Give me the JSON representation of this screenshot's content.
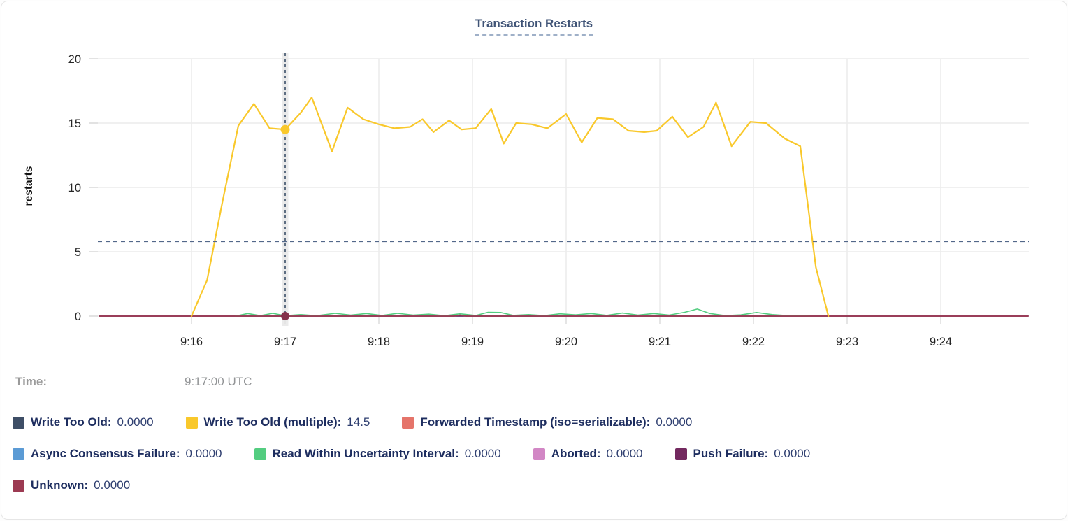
{
  "header": {
    "title": "Transaction Restarts"
  },
  "tooltip": {
    "time_label": "Time:",
    "time_value": "9:17:00 UTC"
  },
  "axis": {
    "ylabel": "restarts"
  },
  "legend_rows": [
    [
      "Write Too Old",
      "Write Too Old (multiple)",
      "Forwarded Timestamp (iso=serializable)"
    ],
    [
      "Async Consensus Failure",
      "Read Within Uncertainty Interval",
      "Aborted",
      "Push Failure"
    ],
    [
      "Unknown"
    ]
  ],
  "chart_data": {
    "type": "line",
    "title": "Transaction Restarts",
    "ylabel": "restarts",
    "ylim": [
      0,
      20
    ],
    "yticks": [
      0,
      5,
      10,
      15,
      20
    ],
    "x_unit": "seconds since 9:15:00 UTC",
    "x_domain_seconds": [
      0,
      600
    ],
    "xticks": [
      {
        "label": "9:16",
        "t": 60
      },
      {
        "label": "9:17",
        "t": 120
      },
      {
        "label": "9:18",
        "t": 180
      },
      {
        "label": "9:19",
        "t": 240
      },
      {
        "label": "9:20",
        "t": 300
      },
      {
        "label": "9:21",
        "t": 360
      },
      {
        "label": "9:22",
        "t": 420
      },
      {
        "label": "9:23",
        "t": 480
      },
      {
        "label": "9:24",
        "t": 540
      }
    ],
    "grid": true,
    "legend_position": "bottom",
    "cursor": {
      "time": "9:17:00",
      "t": 120,
      "y_value": 5.8
    },
    "hover_points": [
      {
        "series": "Write Too Old (multiple)",
        "t": 120,
        "value": 14.5
      },
      {
        "series": "Unknown",
        "t": 120,
        "value": 0
      }
    ],
    "series": [
      {
        "name": "Write Too Old",
        "color": "#3e4e66",
        "legend_value": "0.0000",
        "width": 1.4,
        "points": [
          [
            1,
            0
          ],
          [
            596,
            0
          ]
        ]
      },
      {
        "name": "Forwarded Timestamp (iso=serializable)",
        "color": "#e5746a",
        "legend_value": "0.0000",
        "width": 1.4,
        "points": [
          [
            1,
            0
          ],
          [
            596,
            0
          ]
        ]
      },
      {
        "name": "Async Consensus Failure",
        "color": "#5b9bd5",
        "legend_value": "0.0000",
        "width": 1.4,
        "points": [
          [
            1,
            0
          ],
          [
            596,
            0
          ]
        ]
      },
      {
        "name": "Aborted",
        "color": "#d287c5",
        "legend_value": "0.0000",
        "width": 1.4,
        "points": [
          [
            1,
            0
          ],
          [
            596,
            0
          ]
        ]
      },
      {
        "name": "Push Failure",
        "color": "#73295f",
        "legend_value": "0.0000",
        "width": 1.4,
        "points": [
          [
            1,
            0
          ],
          [
            596,
            0
          ]
        ]
      },
      {
        "name": "Read Within Uncertainty Interval",
        "color": "#53cd80",
        "legend_value": "0.0000",
        "width": 1.6,
        "points": [
          [
            88,
            0
          ],
          [
            96,
            0.2
          ],
          [
            104,
            0.04
          ],
          [
            112,
            0.22
          ],
          [
            120,
            0.03
          ],
          [
            130,
            0.12
          ],
          [
            140,
            0.03
          ],
          [
            152,
            0.22
          ],
          [
            162,
            0.08
          ],
          [
            172,
            0.2
          ],
          [
            182,
            0.05
          ],
          [
            192,
            0.22
          ],
          [
            202,
            0.08
          ],
          [
            212,
            0.15
          ],
          [
            222,
            0.03
          ],
          [
            232,
            0.18
          ],
          [
            242,
            0.05
          ],
          [
            250,
            0.3
          ],
          [
            258,
            0.28
          ],
          [
            266,
            0.06
          ],
          [
            276,
            0.12
          ],
          [
            286,
            0.04
          ],
          [
            296,
            0.18
          ],
          [
            306,
            0.1
          ],
          [
            316,
            0.2
          ],
          [
            326,
            0.06
          ],
          [
            336,
            0.24
          ],
          [
            346,
            0.08
          ],
          [
            356,
            0.2
          ],
          [
            366,
            0.08
          ],
          [
            376,
            0.3
          ],
          [
            384,
            0.55
          ],
          [
            392,
            0.2
          ],
          [
            402,
            0.04
          ],
          [
            412,
            0.1
          ],
          [
            422,
            0.28
          ],
          [
            432,
            0.12
          ],
          [
            442,
            0.04
          ],
          [
            450,
            0.02
          ],
          [
            456,
            0
          ]
        ]
      },
      {
        "name": "Unknown",
        "color": "#9c3a52",
        "legend_value": "0.0000",
        "width": 1.8,
        "points": [
          [
            1,
            0
          ],
          [
            228,
            0
          ],
          [
            232,
            0.08
          ],
          [
            236,
            0
          ],
          [
            596,
            0
          ]
        ]
      },
      {
        "name": "Write Too Old (multiple)",
        "color": "#f9c82b",
        "legend_value": "14.5",
        "width": 2.2,
        "points": [
          [
            60,
            0
          ],
          [
            70,
            2.8
          ],
          [
            80,
            9
          ],
          [
            90,
            14.8
          ],
          [
            100,
            16.5
          ],
          [
            110,
            14.6
          ],
          [
            120,
            14.5
          ],
          [
            130,
            15.8
          ],
          [
            137,
            17
          ],
          [
            150,
            12.8
          ],
          [
            160,
            16.2
          ],
          [
            170,
            15.3
          ],
          [
            180,
            14.9
          ],
          [
            190,
            14.6
          ],
          [
            200,
            14.7
          ],
          [
            208,
            15.3
          ],
          [
            215,
            14.3
          ],
          [
            225,
            15.2
          ],
          [
            233,
            14.5
          ],
          [
            242,
            14.6
          ],
          [
            252,
            16.1
          ],
          [
            260,
            13.4
          ],
          [
            268,
            15.0
          ],
          [
            278,
            14.9
          ],
          [
            288,
            14.6
          ],
          [
            300,
            15.7
          ],
          [
            310,
            13.5
          ],
          [
            320,
            15.4
          ],
          [
            330,
            15.3
          ],
          [
            340,
            14.4
          ],
          [
            350,
            14.3
          ],
          [
            358,
            14.4
          ],
          [
            368,
            15.5
          ],
          [
            378,
            13.9
          ],
          [
            388,
            14.7
          ],
          [
            396,
            16.6
          ],
          [
            406,
            13.2
          ],
          [
            418,
            15.1
          ],
          [
            428,
            15.0
          ],
          [
            440,
            13.8
          ],
          [
            450,
            13.2
          ],
          [
            460,
            3.8
          ],
          [
            468,
            0
          ]
        ]
      }
    ]
  }
}
